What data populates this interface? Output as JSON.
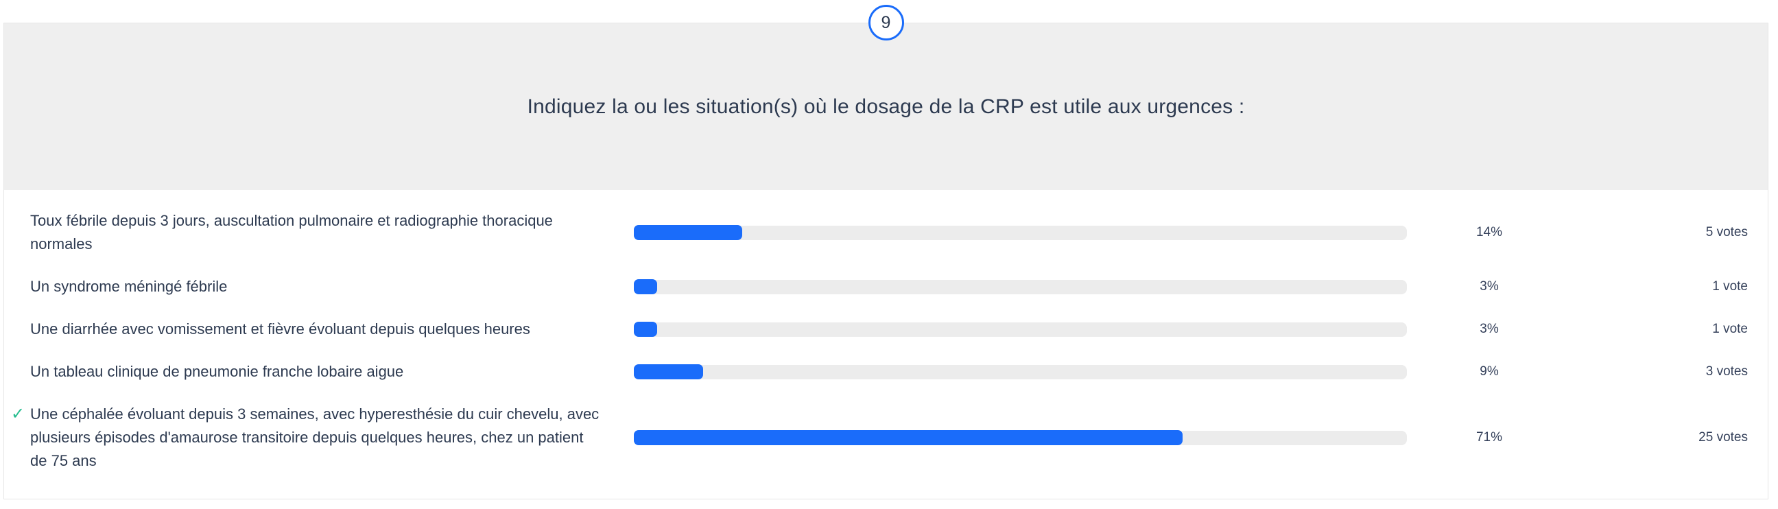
{
  "badge": {
    "number": "9"
  },
  "question": {
    "title": "Indiquez la ou les situation(s) où le dosage de la CRP est utile aux urgences :"
  },
  "answers": [
    {
      "text": "Toux fébrile depuis 3 jours, auscultation pulmonaire et radiographie thoracique normales",
      "percent_label": "14%",
      "percent_value": 14,
      "votes": "5 votes",
      "correct": false
    },
    {
      "text": "Un syndrome méningé fébrile",
      "percent_label": "3%",
      "percent_value": 3,
      "votes": "1 vote",
      "correct": false
    },
    {
      "text": "Une diarrhée avec vomissement et fièvre évoluant depuis quelques heures",
      "percent_label": "3%",
      "percent_value": 3,
      "votes": "1 vote",
      "correct": false
    },
    {
      "text": "Un tableau clinique de pneumonie franche lobaire aigue",
      "percent_label": "9%",
      "percent_value": 9,
      "votes": "3 votes",
      "correct": false
    },
    {
      "text": "Une céphalée évoluant depuis 3 semaines, avec hyperesthésie du cuir chevelu, avec plusieurs épisodes d'amaurose transitoire depuis quelques heures, chez un patient de 75 ans",
      "percent_label": "71%",
      "percent_value": 71,
      "votes": "25 votes",
      "correct": true
    }
  ],
  "icons": {
    "correct_answer": "check-icon"
  },
  "colors": {
    "accent_blue": "#1a6cfa",
    "correct_green": "#27bd8f",
    "bar_track_gray": "#ececec",
    "header_gray": "#efefef",
    "text_navy": "#2d3a50"
  },
  "chart_data": {
    "type": "bar",
    "orientation": "horizontal",
    "title": "Indiquez la ou les situation(s) où le dosage de la CRP est utile aux urgences :",
    "categories": [
      "Toux fébrile depuis 3 jours, auscultation pulmonaire et radiographie thoracique normales",
      "Un syndrome méningé fébrile",
      "Une diarrhée avec vomissement et fièvre évoluant depuis quelques heures",
      "Un tableau clinique de pneumonie franche lobaire aigue",
      "Une céphalée évoluant depuis 3 semaines, avec hyperesthésie du cuir chevelu, avec plusieurs épisodes d'amaurose transitoire depuis quelques heures, chez un patient de 75 ans"
    ],
    "series": [
      {
        "name": "percent",
        "values": [
          14,
          3,
          3,
          9,
          71
        ]
      },
      {
        "name": "votes",
        "values": [
          5,
          1,
          1,
          3,
          25
        ]
      }
    ],
    "correct_answer_index": 4,
    "xlim": [
      0,
      100
    ],
    "grid": false,
    "legend": false,
    "question_number": 9
  }
}
